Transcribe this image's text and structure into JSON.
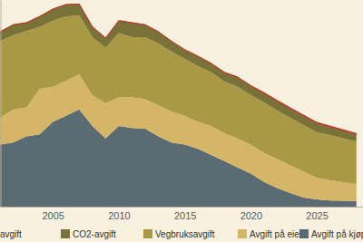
{
  "chart_data": {
    "type": "area",
    "stacked": true,
    "legend": "bottom",
    "tick_labels": "x",
    "x": [
      2001,
      2002,
      2003,
      2004,
      2005,
      2006,
      2007,
      2008,
      2009,
      2010,
      2011,
      2012,
      2013,
      2014,
      2015,
      2016,
      2017,
      2018,
      2019,
      2020,
      2021,
      2022,
      2023,
      2024,
      2025,
      2026,
      2027,
      2028
    ],
    "xlim": [
      2001,
      2028.5
    ],
    "xticks": [
      2005,
      2010,
      2015,
      2020,
      2025
    ],
    "ylim": [
      0,
      100
    ],
    "series": [
      {
        "name": "Avgift på kjøp",
        "color": "#5b6b72",
        "values": [
          30,
          31,
          34,
          35,
          41,
          44,
          47,
          39,
          33,
          39,
          38,
          37.7,
          34,
          31,
          30,
          28,
          25,
          22,
          19,
          16,
          12,
          9,
          6.6,
          4.4,
          3.5,
          3,
          2.8,
          2.6
        ]
      },
      {
        "name": "Avgift på eie",
        "color": "#d5b567",
        "values": [
          13,
          16,
          14,
          22,
          17,
          17,
          17,
          15,
          17,
          14,
          15,
          14.3,
          15,
          15,
          14,
          13,
          14,
          13.5,
          14,
          14,
          14,
          14,
          13.4,
          12.6,
          10.5,
          9.7,
          9,
          8.4
        ]
      },
      {
        "name": "Vegbruksavgift",
        "color": "#a99844",
        "values": [
          37,
          36,
          37,
          30,
          32,
          31,
          28.5,
          28,
          27,
          31,
          29,
          30,
          30,
          29,
          27.5,
          27,
          26,
          25,
          25,
          24,
          24.4,
          23.5,
          23,
          22.5,
          22,
          21.9,
          21.2,
          20.6
        ]
      },
      {
        "name": "CO2-avgift",
        "color": "#7a7339",
        "values": [
          4.6,
          5,
          4,
          5,
          5.6,
          5.8,
          5.5,
          5,
          4.6,
          6,
          7,
          6,
          5.6,
          5,
          4.4,
          4.8,
          4.3,
          4.5,
          4.7,
          4.3,
          4.4,
          4.5,
          4.4,
          4.4,
          4.4,
          4,
          3.8,
          3.4
        ]
      },
      {
        "name": "avgift",
        "color": "#c0392b",
        "values": [
          0,
          0,
          0,
          0,
          0,
          0,
          0,
          0,
          0,
          0,
          0,
          0,
          0,
          0,
          0,
          0,
          0,
          0,
          0,
          0.3,
          0.4,
          0.4,
          0.4,
          0.4,
          0.4,
          0.4,
          0.4,
          0.4
        ]
      }
    ]
  }
}
